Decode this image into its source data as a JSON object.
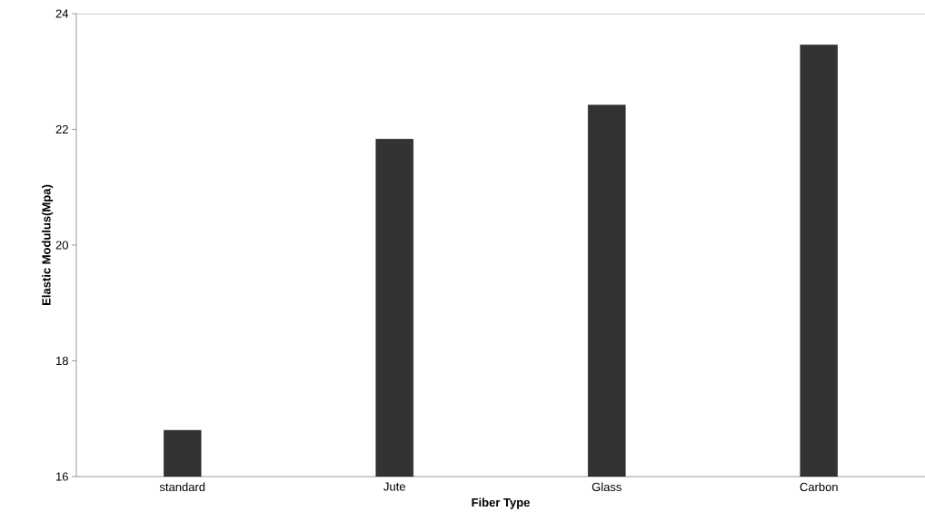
{
  "chart_data": {
    "type": "bar",
    "xlabel": "Fiber Type",
    "ylabel": "Elastic Modulus(Mpa)",
    "categories": [
      "standard",
      "Jute",
      "Glass",
      "Carbon"
    ],
    "values": [
      16.8,
      21.83,
      22.42,
      23.46
    ],
    "color": "#333333",
    "ylim": [
      16,
      24
    ],
    "yticks": [
      16,
      18,
      20,
      22,
      24
    ]
  }
}
